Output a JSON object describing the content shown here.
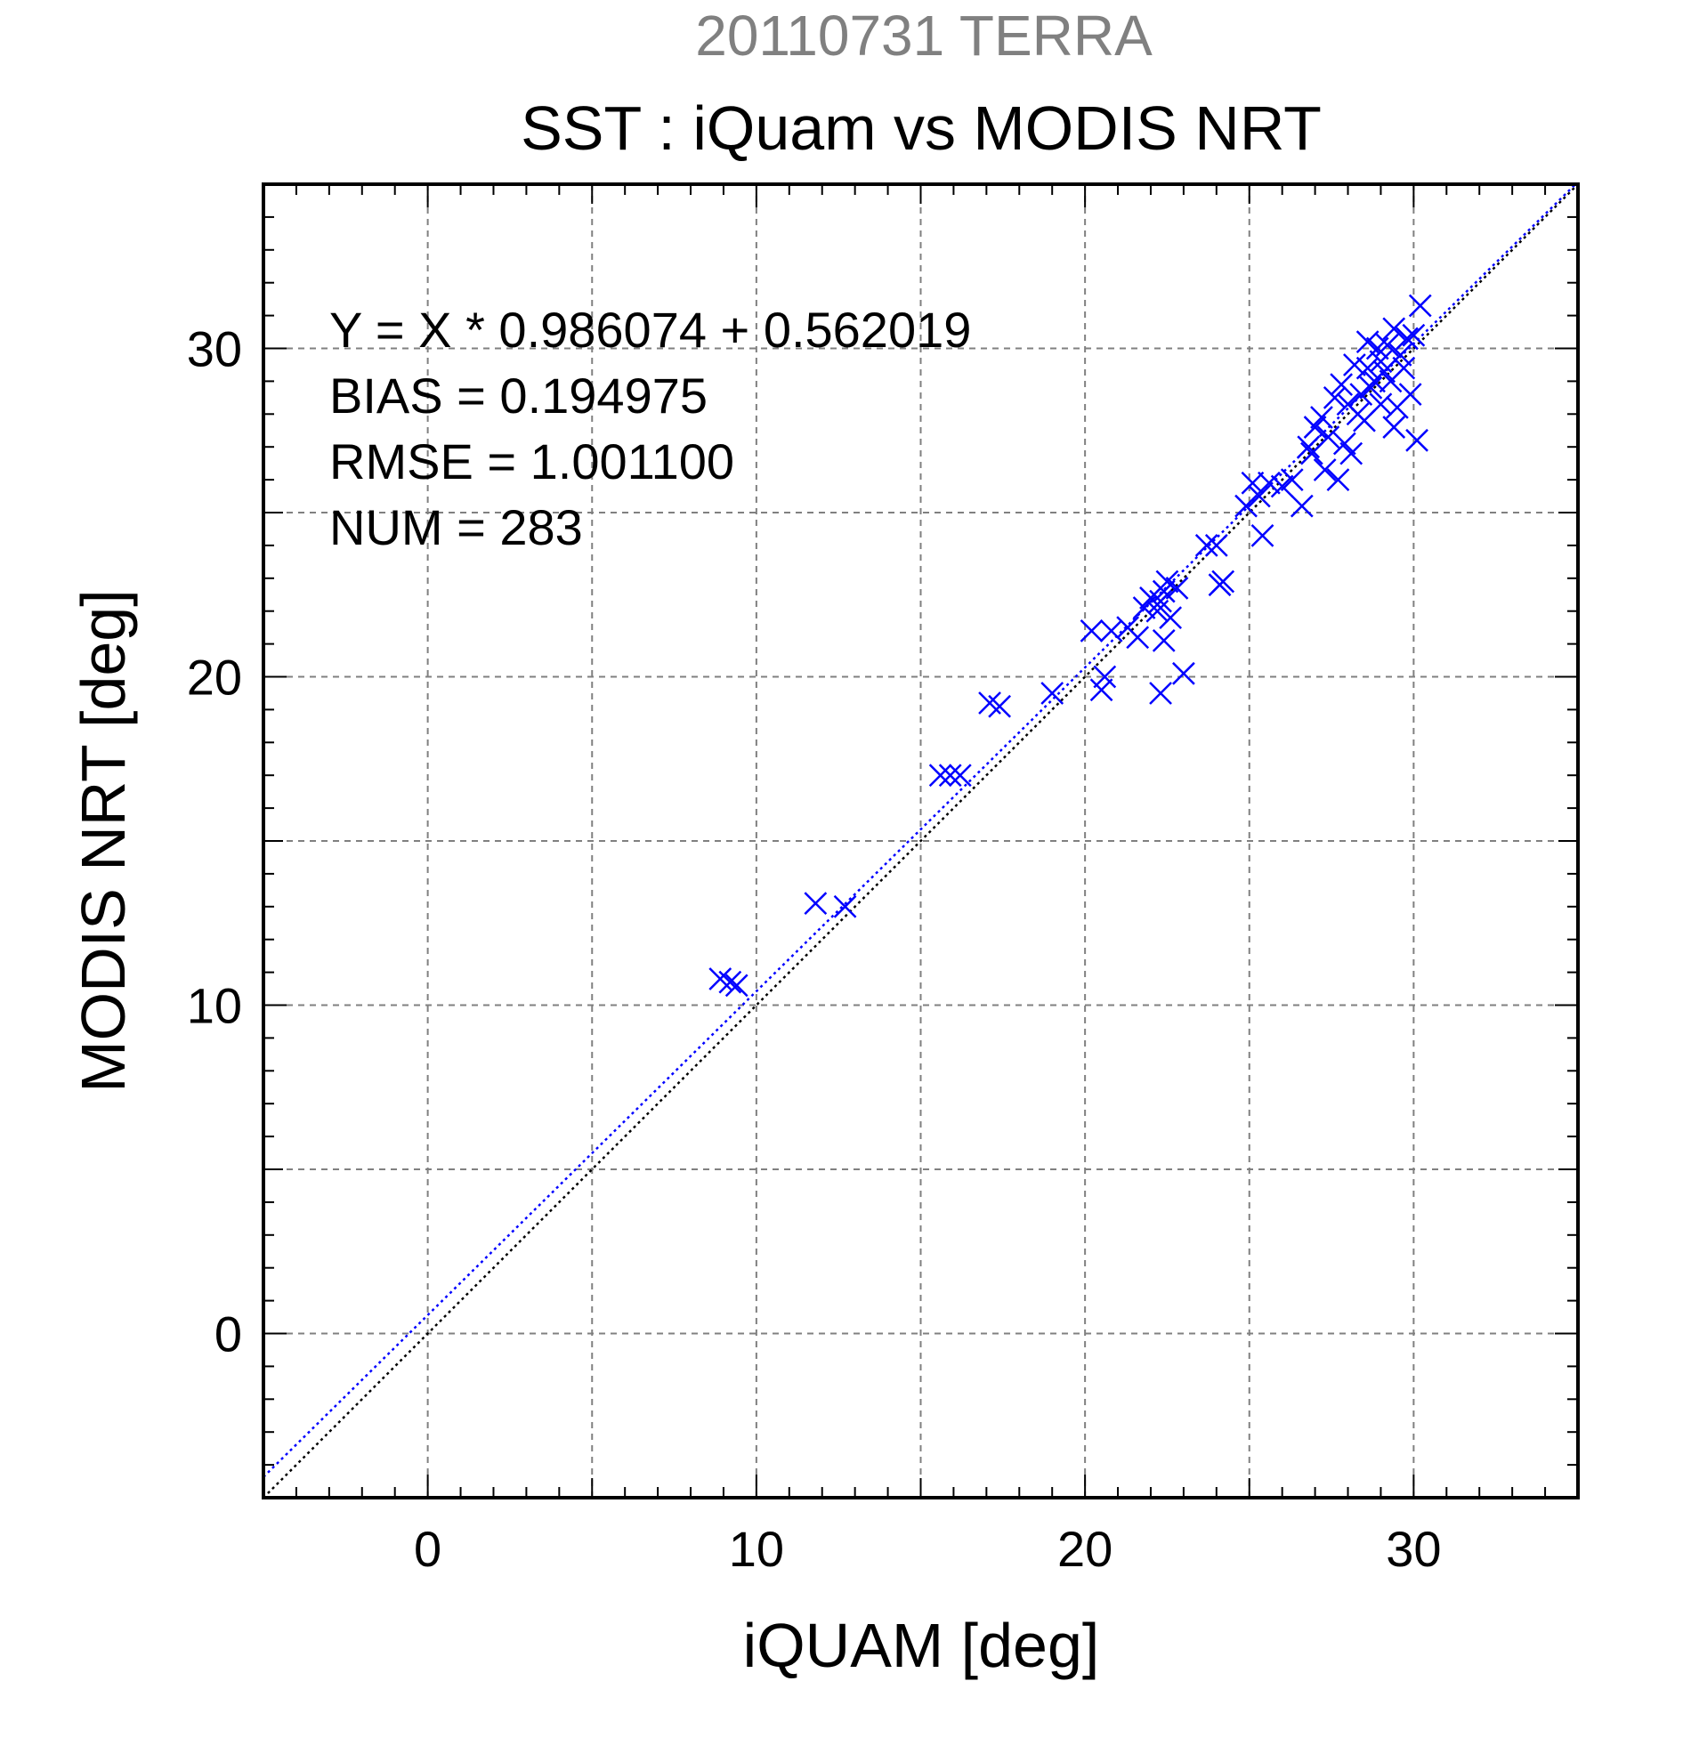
{
  "header": {
    "title": "20110731 TERRA",
    "subtitle": "SST : iQuam vs MODIS NRT"
  },
  "stats": {
    "regression": "Y = X * 0.986074 + 0.562019",
    "bias": "BIAS = 0.194975",
    "rmse": "RMSE = 1.001100",
    "num": "NUM = 283"
  },
  "colors": {
    "title": "#808080",
    "markers": "#0000ff",
    "fit_line": "#0000ff",
    "identity_line": "#000000",
    "grid": "#808080"
  },
  "chart_data": {
    "type": "scatter",
    "title": "SST : iQuam vs MODIS NRT",
    "xlabel": "iQUAM [deg]",
    "ylabel": "MODIS NRT [deg]",
    "xlim": [
      -5,
      35
    ],
    "ylim": [
      -5,
      35
    ],
    "xticks": [
      0,
      10,
      20,
      30
    ],
    "yticks": [
      0,
      10,
      20,
      30
    ],
    "grid": true,
    "marker": "x",
    "fit": {
      "slope": 0.986074,
      "intercept": 0.562019
    },
    "x": [
      8.9,
      9.2,
      9.4,
      11.8,
      12.7,
      15.6,
      15.9,
      16.2,
      17.1,
      17.4,
      19.0,
      20.2,
      20.5,
      20.6,
      20.8,
      21.3,
      21.6,
      21.8,
      22.0,
      22.2,
      22.3,
      22.4,
      22.5,
      22.6,
      22.8,
      22.3,
      22.4,
      23.0,
      23.7,
      24.0,
      24.2,
      24.1,
      24.9,
      25.1,
      25.3,
      25.6,
      26.0,
      26.3,
      26.6,
      25.4,
      26.8,
      27.0,
      27.2,
      27.4,
      27.6,
      27.8,
      28.0,
      28.2,
      28.4,
      28.6,
      28.8,
      29.0,
      29.2,
      29.4,
      29.6,
      29.8,
      30.0,
      30.2,
      27.9,
      28.3,
      28.7,
      29.1,
      29.5,
      29.9,
      28.1,
      28.5,
      29.3,
      27.3,
      26.9,
      28.9,
      29.7,
      30.1,
      27.7,
      29.4,
      29.0,
      28.6
    ],
    "y": [
      10.8,
      10.7,
      10.6,
      13.1,
      13.0,
      17.0,
      17.0,
      17.0,
      19.2,
      19.1,
      19.5,
      21.4,
      19.6,
      20.0,
      21.4,
      21.5,
      21.2,
      22.1,
      22.4,
      22.0,
      22.3,
      22.6,
      22.9,
      21.8,
      22.7,
      19.5,
      21.1,
      20.1,
      24.0,
      24.0,
      22.9,
      22.8,
      25.2,
      25.9,
      25.5,
      25.9,
      25.8,
      26.0,
      25.2,
      24.3,
      27.0,
      27.6,
      27.9,
      27.3,
      28.5,
      28.9,
      28.3,
      29.5,
      28.6,
      30.2,
      29.0,
      29.6,
      30.1,
      30.6,
      29.8,
      30.3,
      30.4,
      31.3,
      27.1,
      28.0,
      28.8,
      29.3,
      28.2,
      28.6,
      26.8,
      27.8,
      29.0,
      26.3,
      26.8,
      30.0,
      29.4,
      27.2,
      26.0,
      27.6,
      28.3,
      29.4
    ]
  }
}
